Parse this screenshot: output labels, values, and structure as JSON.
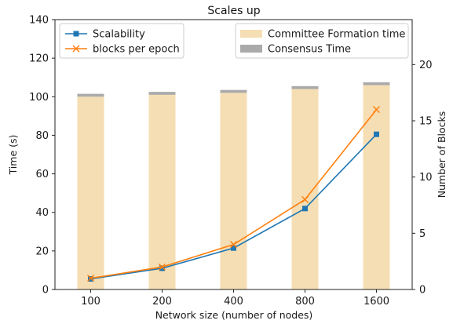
{
  "chart_data": {
    "type": "bar",
    "title": "Scales up",
    "xlabel": "Network size (number of nodes)",
    "ylabel": "Time (s)",
    "ylabel_right": "Number of Blocks",
    "categories": [
      "100",
      "200",
      "400",
      "800",
      "1600"
    ],
    "ylim": [
      0,
      140
    ],
    "ylim_right": [
      0,
      24
    ],
    "yticks": [
      0,
      20,
      40,
      60,
      80,
      100,
      120,
      140
    ],
    "yticks_right": [
      0,
      5,
      10,
      15,
      20
    ],
    "bars": [
      {
        "name": "Committee Formation time",
        "color": "#f5deb3",
        "values": [
          100,
          101,
          102,
          104,
          106
        ]
      },
      {
        "name": "Consensus Time",
        "color": "#aaaaaa",
        "values": [
          1.5,
          1.5,
          1.5,
          1.5,
          1.5
        ]
      }
    ],
    "lines": [
      {
        "name": "Scalability",
        "color": "#1f77b4",
        "marker": "square",
        "axis": "left",
        "values": [
          5.5,
          11,
          21.5,
          42,
          80.5
        ]
      },
      {
        "name": "blocks per epoch",
        "color": "#ff7f0e",
        "marker": "x",
        "axis": "right",
        "values": [
          1,
          2,
          4,
          8,
          16
        ]
      }
    ],
    "legends": {
      "left": [
        "Scalability",
        "blocks per epoch"
      ],
      "right": [
        "Committee Formation time",
        "Consensus Time"
      ]
    },
    "grid": false
  }
}
